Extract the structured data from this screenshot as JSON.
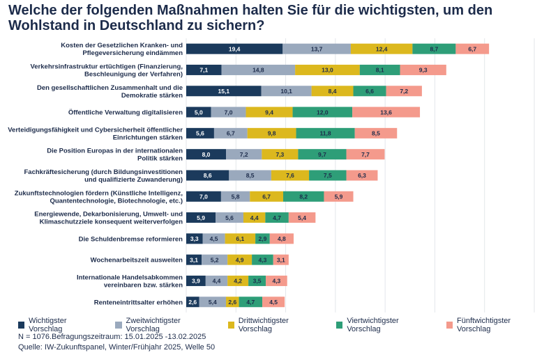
{
  "header": {
    "title": "Welche der folgenden Maßnahmen halten Sie für die wichtigsten, um den Wohlstand in Deutschland zu sichern?"
  },
  "footer": {
    "note_n": "N = 1076.Befragungszeitraum: 15.01.2025 -13.02.2025",
    "source": "Quelle: IW-Zukunftspanel, Winter/Frühjahr 2025, Welle 50"
  },
  "chart_data": {
    "type": "bar",
    "orientation": "horizontal",
    "stacked": true,
    "title": "Welche der folgenden Maßnahmen halten Sie für die wichtigsten, um den Wohlstand in Deutschland zu sichern?",
    "xlabel": "",
    "ylabel": "",
    "xlim": [
      0,
      70
    ],
    "xticks": [
      0,
      10,
      20,
      30,
      40,
      50,
      60,
      70
    ],
    "grid": true,
    "legend": "bottom",
    "categories": [
      [
        "Kosten der Gesetzlichen Kranken- und",
        "Pflegeversicherung eindämmen"
      ],
      [
        "Verkehrsinfrastruktur ertüchtigen (Finanzierung,",
        "Beschleunigung der Verfahren)"
      ],
      [
        "Den gesellschaftlichen Zusammenhalt und die",
        "Demokratie stärken"
      ],
      [
        "Öffentliche Verwaltung digitalisieren"
      ],
      [
        "Verteidigungsfähigkeit und Cybersicherheit öffentlicher",
        "Einrichtungen stärken"
      ],
      [
        "Die Position Europas in der internationalen",
        "Politik stärken"
      ],
      [
        "Fachkräftesicherung (durch Bildungsinvestitionen",
        "und qualifizierte Zuwanderung)"
      ],
      [
        "Zukunftstechnologien fördern (Künstliche Intelligenz,",
        "Quantentechnologie, Biotechnologie, etc.)"
      ],
      [
        "Energiewende, Dekarbonisierung, Umwelt- und",
        "Klimaschutzziele konsequent weiterverfolgen"
      ],
      [
        "Die Schuldenbremse reformieren"
      ],
      [
        "Wochenarbeitszeit ausweiten"
      ],
      [
        "Internationale Handelsabkommen",
        "vereinbaren bzw. stärken"
      ],
      [
        "Renteneintrittsalter erhöhen"
      ]
    ],
    "series": [
      {
        "name": "Wichtigster Vorschlag",
        "color": "#1b3a5c",
        "label_color": "#ffffff",
        "values": [
          19.4,
          7.1,
          15.1,
          5.0,
          5.6,
          8.0,
          8.6,
          7.0,
          5.9,
          3.3,
          3.1,
          3.9,
          2.6
        ]
      },
      {
        "name": "Zweitwichtigster Vorschlag",
        "color": "#9aa9bd",
        "label_color": "#1c2b4a",
        "values": [
          13.7,
          14.8,
          10.1,
          7.0,
          6.7,
          7.2,
          8.5,
          5.8,
          5.6,
          4.5,
          5.2,
          4.4,
          5.4
        ]
      },
      {
        "name": "Drittwichtigster Vorschlag",
        "color": "#dcb81e",
        "label_color": "#1c2b4a",
        "values": [
          12.4,
          13.0,
          8.4,
          9.4,
          9.8,
          7.3,
          7.6,
          6.7,
          4.4,
          6.1,
          4.9,
          4.2,
          2.6
        ]
      },
      {
        "name": "Viertwichtigster Vorschlag",
        "color": "#2e9e78",
        "label_color": "#1c2b4a",
        "values": [
          8.7,
          8.1,
          6.6,
          12.0,
          11.8,
          9.7,
          7.5,
          8.2,
          4.7,
          2.9,
          4.3,
          3.5,
          4.7
        ]
      },
      {
        "name": "Fünftwichtigster Vorschlag",
        "color": "#f49a8c",
        "label_color": "#1c2b4a",
        "values": [
          6.7,
          9.3,
          7.2,
          13.6,
          8.5,
          7.7,
          6.3,
          5.9,
          5.4,
          4.8,
          3.1,
          4.3,
          4.5
        ]
      }
    ]
  }
}
